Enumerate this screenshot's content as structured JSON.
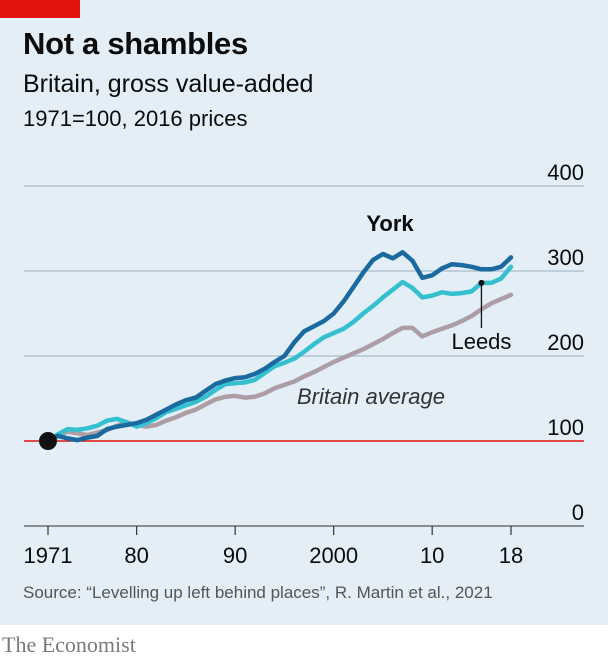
{
  "header": {
    "title": "Not a shambles",
    "subtitle": "Britain, gross value-added",
    "unit": "1971=100, 2016 prices"
  },
  "source": "Source: “Levelling up left behind places”, R. Martin et al., 2021",
  "brand": "The Economist",
  "colors": {
    "panel": "#e3eef6",
    "york": "#1a6aa0",
    "leeds": "#35c0cf",
    "britain": "#ad9ea6",
    "baseline": "#e3120b",
    "accent": "#e3120b"
  },
  "chart_data": {
    "type": "line",
    "title": "Not a shambles",
    "subtitle": "Britain, gross value-added",
    "ylabel": "1971=100, 2016 prices",
    "ylim": [
      0,
      400
    ],
    "yticks": [
      0,
      100,
      200,
      300,
      400
    ],
    "xlim": [
      1971,
      2018
    ],
    "xticks": [
      {
        "value": 1971,
        "label": "1971"
      },
      {
        "value": 1980,
        "label": "80"
      },
      {
        "value": 1990,
        "label": "90"
      },
      {
        "value": 2000,
        "label": "2000"
      },
      {
        "value": 2010,
        "label": "10"
      },
      {
        "value": 2018,
        "label": "18"
      }
    ],
    "baseline": 100,
    "grid": true,
    "series": [
      {
        "name": "Britain average",
        "color": "#ad9ea6",
        "points": [
          [
            1971,
            100
          ],
          [
            1972,
            106
          ],
          [
            1973,
            111
          ],
          [
            1974,
            109
          ],
          [
            1975,
            107
          ],
          [
            1976,
            110
          ],
          [
            1977,
            113
          ],
          [
            1978,
            118
          ],
          [
            1979,
            122
          ],
          [
            1980,
            119
          ],
          [
            1981,
            117
          ],
          [
            1982,
            119
          ],
          [
            1983,
            124
          ],
          [
            1984,
            128
          ],
          [
            1985,
            133
          ],
          [
            1986,
            137
          ],
          [
            1987,
            143
          ],
          [
            1988,
            149
          ],
          [
            1989,
            152
          ],
          [
            1990,
            153
          ],
          [
            1991,
            151
          ],
          [
            1992,
            152
          ],
          [
            1993,
            156
          ],
          [
            1994,
            162
          ],
          [
            1995,
            166
          ],
          [
            1996,
            170
          ],
          [
            1997,
            176
          ],
          [
            1998,
            181
          ],
          [
            1999,
            187
          ],
          [
            2000,
            193
          ],
          [
            2001,
            198
          ],
          [
            2002,
            203
          ],
          [
            2003,
            208
          ],
          [
            2004,
            214
          ],
          [
            2005,
            220
          ],
          [
            2006,
            227
          ],
          [
            2007,
            233
          ],
          [
            2008,
            233
          ],
          [
            2009,
            223
          ],
          [
            2010,
            228
          ],
          [
            2011,
            232
          ],
          [
            2012,
            236
          ],
          [
            2013,
            241
          ],
          [
            2014,
            247
          ],
          [
            2015,
            255
          ],
          [
            2016,
            262
          ],
          [
            2017,
            267
          ],
          [
            2018,
            272
          ]
        ]
      },
      {
        "name": "Leeds",
        "color": "#35c0cf",
        "points": [
          [
            1971,
            100
          ],
          [
            1972,
            108
          ],
          [
            1973,
            114
          ],
          [
            1974,
            113
          ],
          [
            1975,
            115
          ],
          [
            1976,
            118
          ],
          [
            1977,
            124
          ],
          [
            1978,
            126
          ],
          [
            1979,
            122
          ],
          [
            1980,
            117
          ],
          [
            1981,
            121
          ],
          [
            1982,
            127
          ],
          [
            1983,
            134
          ],
          [
            1984,
            138
          ],
          [
            1985,
            142
          ],
          [
            1986,
            146
          ],
          [
            1987,
            152
          ],
          [
            1988,
            160
          ],
          [
            1989,
            167
          ],
          [
            1990,
            168
          ],
          [
            1991,
            169
          ],
          [
            1992,
            172
          ],
          [
            1993,
            180
          ],
          [
            1994,
            188
          ],
          [
            1995,
            192
          ],
          [
            1996,
            197
          ],
          [
            1997,
            205
          ],
          [
            1998,
            214
          ],
          [
            1999,
            222
          ],
          [
            2000,
            227
          ],
          [
            2001,
            232
          ],
          [
            2002,
            240
          ],
          [
            2003,
            250
          ],
          [
            2004,
            259
          ],
          [
            2005,
            269
          ],
          [
            2006,
            278
          ],
          [
            2007,
            287
          ],
          [
            2008,
            280
          ],
          [
            2009,
            269
          ],
          [
            2010,
            271
          ],
          [
            2011,
            275
          ],
          [
            2012,
            273
          ],
          [
            2013,
            274
          ],
          [
            2014,
            276
          ],
          [
            2015,
            286
          ],
          [
            2016,
            286
          ],
          [
            2017,
            291
          ],
          [
            2018,
            305
          ]
        ]
      },
      {
        "name": "York",
        "color": "#1a6aa0",
        "points": [
          [
            1971,
            100
          ],
          [
            1972,
            106
          ],
          [
            1973,
            103
          ],
          [
            1974,
            101
          ],
          [
            1975,
            104
          ],
          [
            1976,
            106
          ],
          [
            1977,
            114
          ],
          [
            1978,
            117
          ],
          [
            1979,
            119
          ],
          [
            1980,
            121
          ],
          [
            1981,
            125
          ],
          [
            1982,
            131
          ],
          [
            1983,
            137
          ],
          [
            1984,
            143
          ],
          [
            1985,
            148
          ],
          [
            1986,
            151
          ],
          [
            1987,
            159
          ],
          [
            1988,
            167
          ],
          [
            1989,
            171
          ],
          [
            1990,
            174
          ],
          [
            1991,
            175
          ],
          [
            1992,
            179
          ],
          [
            1993,
            185
          ],
          [
            1994,
            193
          ],
          [
            1995,
            200
          ],
          [
            1996,
            216
          ],
          [
            1997,
            229
          ],
          [
            1998,
            235
          ],
          [
            1999,
            241
          ],
          [
            2000,
            250
          ],
          [
            2001,
            264
          ],
          [
            2002,
            281
          ],
          [
            2003,
            298
          ],
          [
            2004,
            313
          ],
          [
            2005,
            320
          ],
          [
            2006,
            315
          ],
          [
            2007,
            322
          ],
          [
            2008,
            312
          ],
          [
            2009,
            292
          ],
          [
            2010,
            295
          ],
          [
            2011,
            303
          ],
          [
            2012,
            308
          ],
          [
            2013,
            307
          ],
          [
            2014,
            305
          ],
          [
            2015,
            302
          ],
          [
            2016,
            302
          ],
          [
            2017,
            305
          ],
          [
            2018,
            316
          ]
        ]
      }
    ],
    "annotations": [
      {
        "text": "York",
        "series": "York",
        "style": "bold"
      },
      {
        "text": "Leeds",
        "series": "Leeds",
        "style": "callout",
        "anchor_year": 2015
      },
      {
        "text": "Britain average",
        "series": "Britain average",
        "style": "italic"
      }
    ]
  }
}
